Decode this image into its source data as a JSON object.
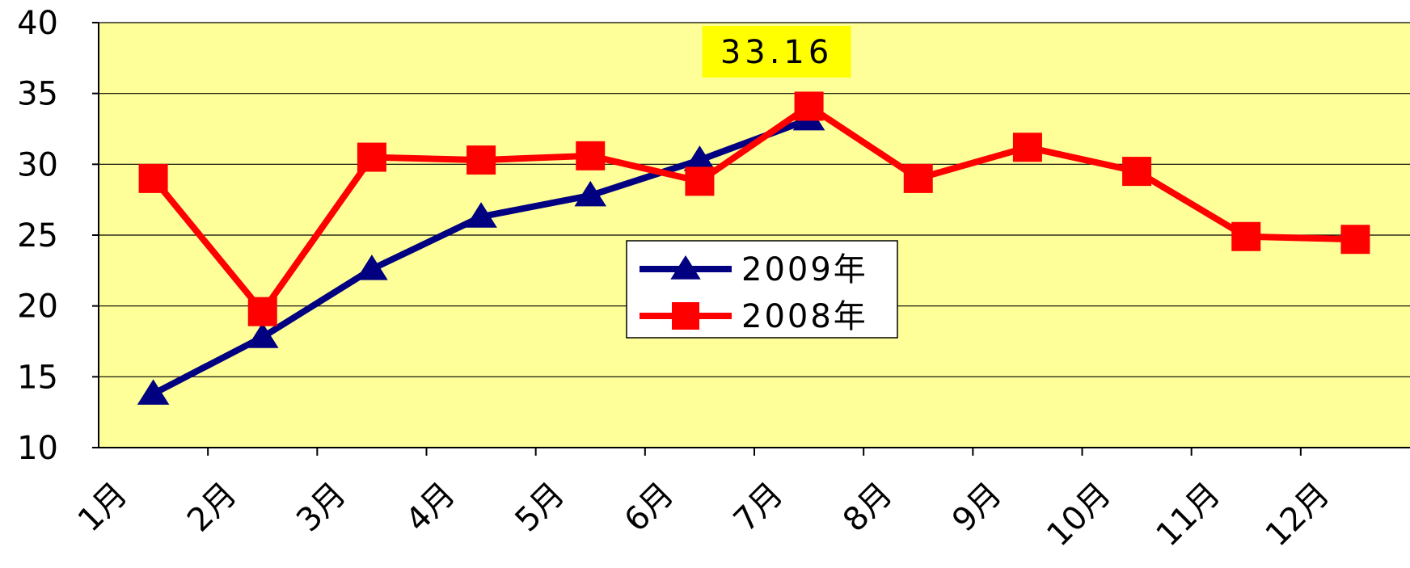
{
  "chart_data": {
    "type": "line",
    "categories": [
      "1月",
      "2月",
      "3月",
      "4月",
      "5月",
      "6月",
      "7月",
      "8月",
      "9月",
      "10月",
      "11月",
      "12月"
    ],
    "series": [
      {
        "name": "2009年",
        "color": "#000080",
        "marker": "triangle",
        "values": [
          13.8,
          17.8,
          22.6,
          26.3,
          27.8,
          30.3,
          33.16,
          null,
          null,
          null,
          null,
          null
        ],
        "value_labels": [
          null,
          null,
          null,
          null,
          null,
          null,
          "33.16",
          null,
          null,
          null,
          null,
          null
        ]
      },
      {
        "name": "2008年",
        "color": "#ff0000",
        "marker": "square",
        "values": [
          29.0,
          19.6,
          30.5,
          30.3,
          30.6,
          28.8,
          34.1,
          29.0,
          31.2,
          29.5,
          24.9,
          24.7
        ]
      }
    ],
    "ylim": [
      10,
      40
    ],
    "yticks": [
      10,
      15,
      20,
      25,
      30,
      35,
      40
    ],
    "grid": true,
    "plot_background": "#ffff99",
    "legend": "center"
  }
}
